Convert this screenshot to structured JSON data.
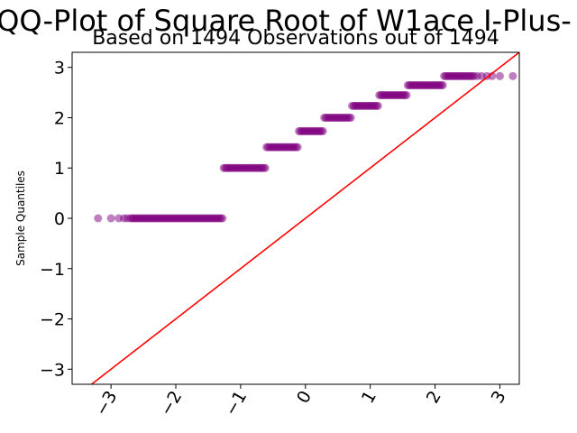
{
  "chart_data": {
    "type": "scatter",
    "title": "QQ-Plot of Square Root of W1ace I-Plus-",
    "subtitle": "Based on 1494 Observations out of 1494",
    "xlabel": "",
    "ylabel": "Sample Quantiles",
    "xlim": [
      -3.6,
      3.3
    ],
    "ylim": [
      -3.3,
      3.3
    ],
    "x_ticks": [
      -3,
      -2,
      -1,
      0,
      1,
      2,
      3
    ],
    "x_tick_labels": [
      "−3",
      "−2",
      "−1",
      "0",
      "1",
      "2",
      "3"
    ],
    "y_ticks": [
      -3,
      -2,
      -1,
      0,
      1,
      2,
      3
    ],
    "y_tick_labels": [
      "−3",
      "−2",
      "−1",
      "0",
      "1",
      "2",
      "3"
    ],
    "grid": false,
    "colors": {
      "points": "#800080",
      "reference_line": "#ff0000"
    },
    "series": [
      {
        "type": "points",
        "levels": [
          {
            "y": 0.0,
            "x_range": [
              -2.7,
              -1.28
            ],
            "isolated_x": [
              -3.2,
              -3.0,
              -2.88,
              -2.8,
              -2.75
            ]
          },
          {
            "y": 1.0,
            "x_range": [
              -1.26,
              -0.62
            ]
          },
          {
            "y": 1.414,
            "x_range": [
              -0.6,
              -0.12
            ]
          },
          {
            "y": 1.732,
            "x_range": [
              -0.1,
              0.27
            ]
          },
          {
            "y": 2.0,
            "x_range": [
              0.29,
              0.7
            ]
          },
          {
            "y": 2.236,
            "x_range": [
              0.72,
              1.12
            ]
          },
          {
            "y": 2.449,
            "x_range": [
              1.14,
              1.56
            ]
          },
          {
            "y": 2.646,
            "x_range": [
              1.58,
              2.12
            ]
          },
          {
            "y": 2.828,
            "x_range": [
              2.14,
              2.6
            ],
            "isolated_x": [
              2.65,
              2.72,
              2.8,
              2.88,
              3.0,
              3.2
            ]
          }
        ]
      },
      {
        "type": "reference_line",
        "x": [
          -3.6,
          3.3
        ],
        "y": [
          -3.6,
          3.3
        ]
      }
    ]
  }
}
